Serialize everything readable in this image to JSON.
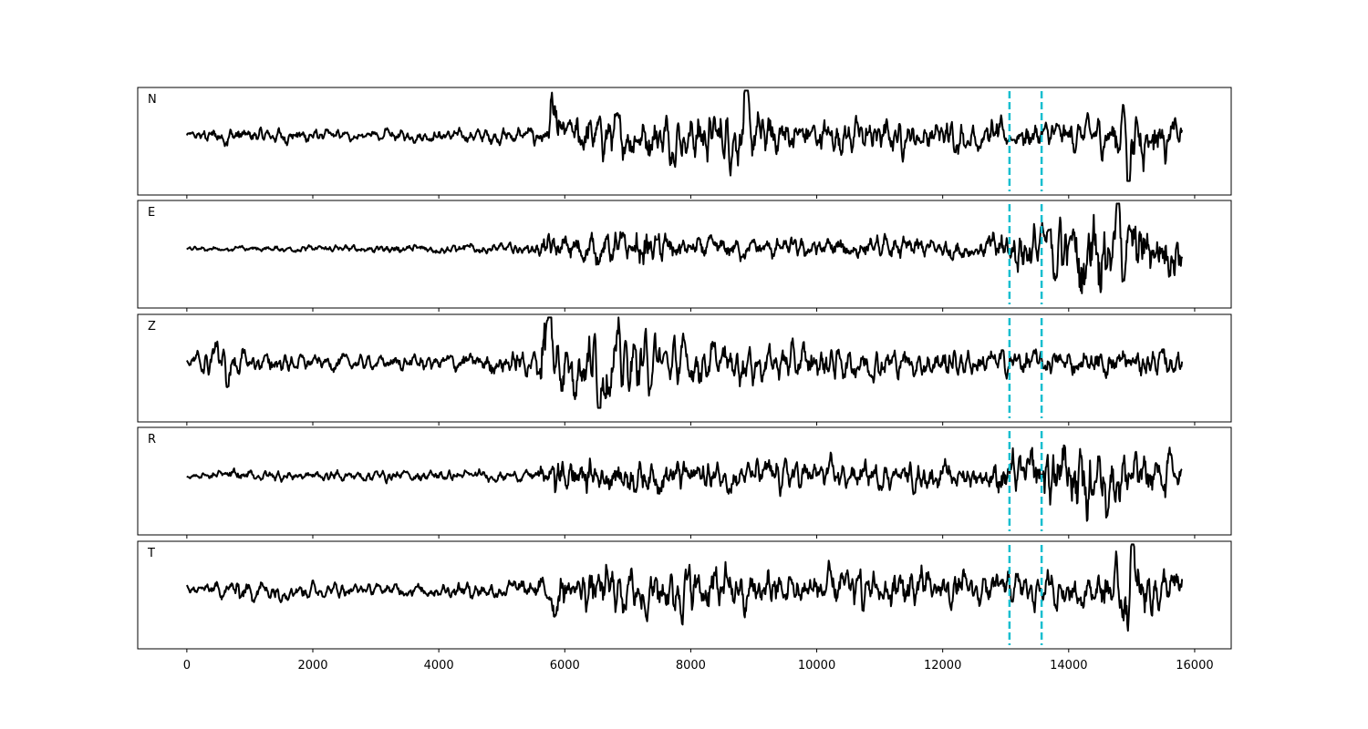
{
  "chart_data": {
    "type": "line",
    "x_range": [
      0,
      15800
    ],
    "xlim": [
      -780,
      16580
    ],
    "x_ticks": [
      "0",
      "2000",
      "4000",
      "6000",
      "8000",
      "10000",
      "12000",
      "14000",
      "16000"
    ],
    "x_tick_values": [
      0,
      2000,
      4000,
      6000,
      8000,
      10000,
      12000,
      14000,
      16000
    ],
    "line_color": "#000000",
    "marker_color": "#17becf",
    "marker_lines": [
      13060,
      13570
    ],
    "grid": false,
    "panels": [
      {
        "label": "N",
        "envelope": [
          [
            0,
            0.07
          ],
          [
            700,
            0.2
          ],
          [
            900,
            0.12
          ],
          [
            1500,
            0.15
          ],
          [
            2500,
            0.1
          ],
          [
            4500,
            0.12
          ],
          [
            5700,
            0.2
          ],
          [
            5780,
            0.45
          ],
          [
            6000,
            0.4
          ],
          [
            7500,
            0.42
          ],
          [
            8850,
            0.55
          ],
          [
            9500,
            0.35
          ],
          [
            12000,
            0.3
          ],
          [
            13500,
            0.25
          ],
          [
            14500,
            0.35
          ],
          [
            15000,
            0.55
          ],
          [
            15800,
            0.3
          ]
        ],
        "bursts": [
          [
            5800,
            0.55
          ],
          [
            8870,
            0.8
          ],
          [
            14950,
            -0.95
          ],
          [
            14880,
            0.5
          ]
        ]
      },
      {
        "label": "E",
        "envelope": [
          [
            0,
            0.04
          ],
          [
            5500,
            0.1
          ],
          [
            5800,
            0.3
          ],
          [
            6300,
            0.28
          ],
          [
            7300,
            0.35
          ],
          [
            8000,
            0.2
          ],
          [
            12500,
            0.2
          ],
          [
            12800,
            0.3
          ],
          [
            13400,
            0.5
          ],
          [
            14200,
            0.75
          ],
          [
            14600,
            0.8
          ],
          [
            15000,
            0.55
          ],
          [
            15800,
            0.5
          ]
        ],
        "bursts": [
          [
            14200,
            -0.85
          ],
          [
            14400,
            0.8
          ],
          [
            14780,
            0.7
          ]
        ]
      },
      {
        "label": "Z",
        "envelope": [
          [
            0,
            0.06
          ],
          [
            450,
            0.4
          ],
          [
            700,
            0.25
          ],
          [
            1300,
            0.18
          ],
          [
            3000,
            0.12
          ],
          [
            5500,
            0.25
          ],
          [
            5650,
            0.8
          ],
          [
            6000,
            0.55
          ],
          [
            6700,
            0.7
          ],
          [
            7500,
            0.45
          ],
          [
            9000,
            0.35
          ],
          [
            11000,
            0.3
          ],
          [
            13000,
            0.25
          ],
          [
            15800,
            0.25
          ]
        ],
        "bursts": [
          [
            5680,
            0.95
          ],
          [
            5760,
            0.9
          ],
          [
            6550,
            -0.65
          ],
          [
            480,
            0.48
          ],
          [
            650,
            -0.45
          ]
        ]
      },
      {
        "label": "R",
        "envelope": [
          [
            0,
            0.04
          ],
          [
            500,
            0.1
          ],
          [
            5500,
            0.1
          ],
          [
            5800,
            0.35
          ],
          [
            6500,
            0.3
          ],
          [
            8800,
            0.3
          ],
          [
            12500,
            0.22
          ],
          [
            13000,
            0.35
          ],
          [
            13500,
            0.5
          ],
          [
            14200,
            0.65
          ],
          [
            14800,
            0.6
          ],
          [
            15400,
            0.45
          ],
          [
            15800,
            0.4
          ]
        ],
        "bursts": [
          [
            14180,
            0.95
          ],
          [
            14280,
            -0.8
          ],
          [
            14150,
            -0.6
          ]
        ]
      },
      {
        "label": "T",
        "envelope": [
          [
            0,
            0.06
          ],
          [
            900,
            0.2
          ],
          [
            3000,
            0.1
          ],
          [
            5600,
            0.2
          ],
          [
            5800,
            0.32
          ],
          [
            7500,
            0.5
          ],
          [
            8850,
            0.4
          ],
          [
            10000,
            0.35
          ],
          [
            11000,
            0.42
          ],
          [
            13000,
            0.3
          ],
          [
            14500,
            0.35
          ],
          [
            15000,
            0.55
          ],
          [
            15800,
            0.3
          ]
        ],
        "bursts": [
          [
            15000,
            1.0
          ],
          [
            14930,
            -0.75
          ],
          [
            8870,
            -0.5
          ],
          [
            5840,
            -0.45
          ]
        ]
      }
    ]
  }
}
